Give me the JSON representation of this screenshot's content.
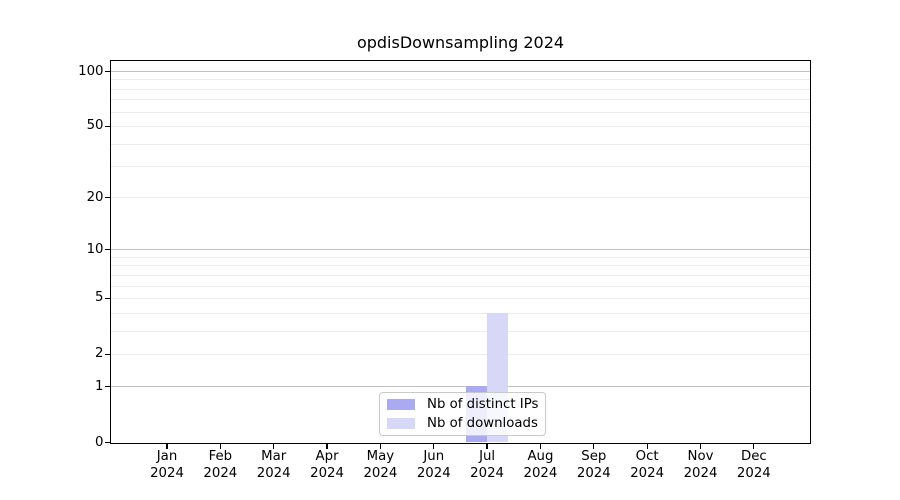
{
  "title": "opdisDownsampling 2024",
  "chart_data": {
    "type": "bar",
    "title": "opdisDownsampling 2024",
    "categories": [
      "Jan",
      "Feb",
      "Mar",
      "Apr",
      "May",
      "Jun",
      "Jul",
      "Aug",
      "Sep",
      "Oct",
      "Nov",
      "Dec"
    ],
    "category_year": "2024",
    "series": [
      {
        "name": "Nb of distinct IPs",
        "color": "#a9aaf2",
        "values": [
          0,
          0,
          0,
          0,
          0,
          0,
          1,
          0,
          0,
          0,
          0,
          0
        ]
      },
      {
        "name": "Nb of downloads",
        "color": "#d7d8f7",
        "values": [
          0,
          0,
          0,
          0,
          0,
          0,
          4,
          0,
          0,
          0,
          0,
          0
        ]
      }
    ],
    "xlabel": "",
    "ylabel": "",
    "yscale": "log1p",
    "ylim": [
      0,
      113.5
    ],
    "y_tick_labels": [
      0,
      1,
      2,
      5,
      10,
      20,
      50,
      100
    ],
    "y_major_gridlines": [
      1,
      10,
      100
    ],
    "y_minor_gridlines": [
      2,
      3,
      4,
      5,
      6,
      7,
      8,
      9,
      20,
      30,
      40,
      50,
      60,
      70,
      80,
      90
    ],
    "grid": true,
    "legend": {
      "position": "lower center",
      "items": [
        "Nb of distinct IPs",
        "Nb of downloads"
      ]
    },
    "colors": {
      "major_grid": "#c3c3c3",
      "minor_grid": "#ececec",
      "axis": "#000000",
      "background": "#ffffff"
    }
  }
}
